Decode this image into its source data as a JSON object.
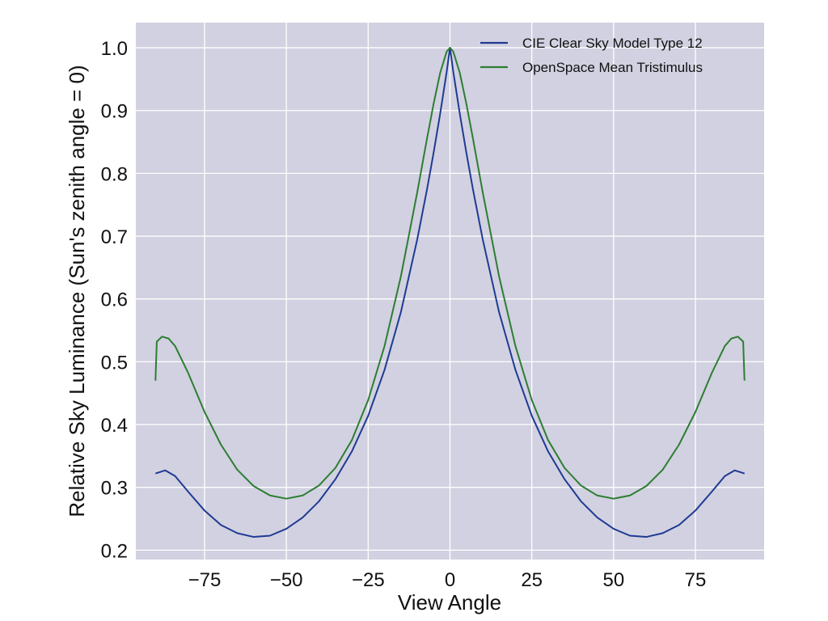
{
  "chart_data": {
    "type": "line",
    "title": "",
    "xlabel": "View Angle",
    "ylabel": "Relative Sky Luminance (Sun's zenith angle = 0)",
    "xlim": [
      -96,
      96
    ],
    "ylim": [
      0.185,
      1.04
    ],
    "xticks": [
      -75,
      -50,
      -25,
      0,
      25,
      50,
      75
    ],
    "xtick_labels": [
      "−75",
      "−50",
      "−25",
      "0",
      "25",
      "50",
      "75"
    ],
    "yticks": [
      0.2,
      0.3,
      0.4,
      0.5,
      0.6,
      0.7,
      0.8,
      0.9,
      1.0
    ],
    "ytick_labels": [
      "0.2",
      "0.3",
      "0.4",
      "0.5",
      "0.6",
      "0.7",
      "0.8",
      "0.9",
      "1.0"
    ],
    "grid": true,
    "legend_position": "top-right",
    "background_color": "#d1d1e1",
    "grid_color": "#ffffff",
    "series": [
      {
        "name": "CIE Clear Sky Model Type 12",
        "color": "#1f3a93",
        "x": [
          -90,
          -87,
          -84,
          -80,
          -75,
          -70,
          -65,
          -60,
          -55,
          -50,
          -45,
          -40,
          -35,
          -30,
          -25,
          -20,
          -15,
          -10,
          -7,
          -5,
          -3,
          -1,
          0,
          1,
          3,
          5,
          7,
          10,
          15,
          20,
          25,
          30,
          35,
          40,
          45,
          50,
          55,
          60,
          65,
          70,
          75,
          80,
          84,
          87,
          90
        ],
        "y": [
          0.322,
          0.327,
          0.318,
          0.293,
          0.263,
          0.24,
          0.227,
          0.221,
          0.223,
          0.234,
          0.252,
          0.278,
          0.313,
          0.357,
          0.414,
          0.487,
          0.579,
          0.695,
          0.775,
          0.833,
          0.895,
          0.962,
          1.0,
          0.962,
          0.895,
          0.833,
          0.775,
          0.695,
          0.579,
          0.487,
          0.414,
          0.357,
          0.313,
          0.278,
          0.252,
          0.234,
          0.223,
          0.221,
          0.227,
          0.24,
          0.263,
          0.293,
          0.318,
          0.327,
          0.322
        ]
      },
      {
        "name": "OpenSpace Mean Tristimulus",
        "color": "#2e7d32",
        "x": [
          -90,
          -89.6,
          -88,
          -86,
          -84,
          -80,
          -75,
          -70,
          -65,
          -60,
          -55,
          -50,
          -45,
          -40,
          -35,
          -30,
          -25,
          -20,
          -15,
          -10,
          -7,
          -5,
          -3,
          -1,
          0,
          1,
          3,
          5,
          7,
          10,
          15,
          20,
          25,
          30,
          35,
          40,
          45,
          50,
          55,
          60,
          65,
          70,
          75,
          80,
          84,
          86,
          88,
          89.6,
          90
        ],
        "y": [
          0.47,
          0.532,
          0.54,
          0.537,
          0.525,
          0.482,
          0.42,
          0.368,
          0.328,
          0.302,
          0.287,
          0.282,
          0.287,
          0.303,
          0.331,
          0.375,
          0.439,
          0.525,
          0.636,
          0.77,
          0.856,
          0.911,
          0.96,
          0.994,
          1.0,
          0.994,
          0.96,
          0.911,
          0.856,
          0.77,
          0.636,
          0.525,
          0.439,
          0.375,
          0.331,
          0.303,
          0.287,
          0.282,
          0.287,
          0.302,
          0.328,
          0.368,
          0.42,
          0.482,
          0.525,
          0.537,
          0.54,
          0.532,
          0.47
        ]
      }
    ]
  }
}
